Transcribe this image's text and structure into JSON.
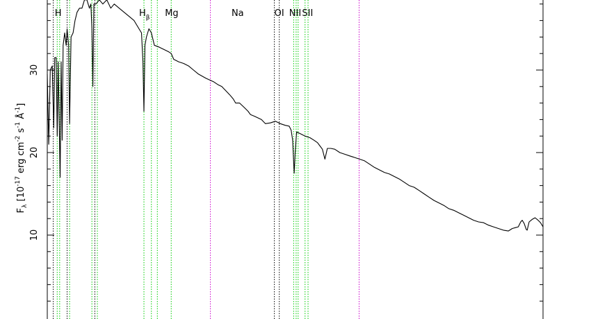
{
  "chart_data": {
    "type": "line",
    "ylabel": "F_λ [10^-17 erg cm^-2 s^-1 Å^-1]",
    "ylim": [
      0,
      38.8
    ],
    "y_ticks": [
      10,
      20,
      30
    ],
    "xlim": [
      0,
      1000
    ],
    "colors": {
      "spectrum": "#000000",
      "green_lines": "#00cc00",
      "black_lines": "#000000",
      "magenta_lines": "#cc00cc"
    },
    "line_labels": [
      {
        "text": "H",
        "x": 22
      },
      {
        "text": "H",
        "sub": "β",
        "x": 196
      },
      {
        "text": "Mg",
        "x": 251
      },
      {
        "text": "Na",
        "x": 384
      },
      {
        "text": "OI",
        "x": 468
      },
      {
        "text": "NII",
        "x": 500
      },
      {
        "text": "SII",
        "x": 525
      }
    ],
    "reference_lines": [
      {
        "x": 12,
        "color": "black"
      },
      {
        "x": 20,
        "color": "green"
      },
      {
        "x": 25,
        "color": "green"
      },
      {
        "x": 40,
        "color": "black"
      },
      {
        "x": 45,
        "color": "green"
      },
      {
        "x": 90,
        "color": "green"
      },
      {
        "x": 96,
        "color": "black"
      },
      {
        "x": 101,
        "color": "green"
      },
      {
        "x": 195,
        "color": "green"
      },
      {
        "x": 210,
        "color": "green"
      },
      {
        "x": 222,
        "color": "green"
      },
      {
        "x": 250,
        "color": "green"
      },
      {
        "x": 329,
        "color": "magenta"
      },
      {
        "x": 458,
        "color": "black"
      },
      {
        "x": 468,
        "color": "black"
      },
      {
        "x": 497,
        "color": "green"
      },
      {
        "x": 502,
        "color": "green"
      },
      {
        "x": 506,
        "color": "green"
      },
      {
        "x": 520,
        "color": "green"
      },
      {
        "x": 526,
        "color": "green"
      },
      {
        "x": 629,
        "color": "magenta"
      }
    ],
    "spectrum": [
      [
        0,
        29.5
      ],
      [
        3,
        21
      ],
      [
        6,
        30
      ],
      [
        10,
        30.5
      ],
      [
        13,
        23
      ],
      [
        15,
        31.5
      ],
      [
        18,
        31.5
      ],
      [
        20,
        22
      ],
      [
        22,
        31
      ],
      [
        26,
        17
      ],
      [
        28,
        31
      ],
      [
        30,
        21.5
      ],
      [
        32,
        33
      ],
      [
        35,
        34.5
      ],
      [
        38,
        33
      ],
      [
        40,
        35
      ],
      [
        43,
        33
      ],
      [
        45,
        23.5
      ],
      [
        48,
        34
      ],
      [
        52,
        34.5
      ],
      [
        56,
        36
      ],
      [
        60,
        37
      ],
      [
        65,
        37.5
      ],
      [
        70,
        37.5
      ],
      [
        75,
        38.5
      ],
      [
        80,
        38.5
      ],
      [
        85,
        37.5
      ],
      [
        88,
        38
      ],
      [
        90,
        35
      ],
      [
        92,
        28
      ],
      [
        94,
        38
      ],
      [
        98,
        38
      ],
      [
        105,
        38.5
      ],
      [
        112,
        38
      ],
      [
        120,
        38.5
      ],
      [
        128,
        37.5
      ],
      [
        135,
        38
      ],
      [
        145,
        37.5
      ],
      [
        155,
        37
      ],
      [
        165,
        36.5
      ],
      [
        175,
        36
      ],
      [
        185,
        35
      ],
      [
        190,
        34.5
      ],
      [
        193,
        31
      ],
      [
        195,
        25
      ],
      [
        197,
        33
      ],
      [
        200,
        34
      ],
      [
        205,
        35
      ],
      [
        210,
        34.5
      ],
      [
        216,
        33
      ],
      [
        225,
        32.8
      ],
      [
        235,
        32.5
      ],
      [
        245,
        32.2
      ],
      [
        250,
        32
      ],
      [
        255,
        31.3
      ],
      [
        265,
        31
      ],
      [
        275,
        30.8
      ],
      [
        285,
        30.5
      ],
      [
        295,
        30
      ],
      [
        305,
        29.5
      ],
      [
        320,
        29
      ],
      [
        335,
        28.6
      ],
      [
        345,
        28.2
      ],
      [
        352,
        28
      ],
      [
        360,
        27.5
      ],
      [
        368,
        27
      ],
      [
        375,
        26.5
      ],
      [
        380,
        26
      ],
      [
        388,
        26
      ],
      [
        395,
        25.6
      ],
      [
        400,
        25.3
      ],
      [
        405,
        25
      ],
      [
        410,
        24.6
      ],
      [
        418,
        24.4
      ],
      [
        425,
        24.2
      ],
      [
        432,
        24
      ],
      [
        440,
        23.5
      ],
      [
        450,
        23.6
      ],
      [
        460,
        23.8
      ],
      [
        470,
        23.5
      ],
      [
        480,
        23.3
      ],
      [
        488,
        23.2
      ],
      [
        492,
        22.7
      ],
      [
        495,
        21.5
      ],
      [
        498,
        17.5
      ],
      [
        500,
        20
      ],
      [
        503,
        22.5
      ],
      [
        510,
        22.3
      ],
      [
        520,
        22
      ],
      [
        530,
        21.8
      ],
      [
        538,
        21.5
      ],
      [
        545,
        21.2
      ],
      [
        550,
        20.8
      ],
      [
        555,
        20.4
      ],
      [
        560,
        19.2
      ],
      [
        565,
        20.5
      ],
      [
        572,
        20.5
      ],
      [
        580,
        20.4
      ],
      [
        590,
        20
      ],
      [
        600,
        19.8
      ],
      [
        610,
        19.6
      ],
      [
        620,
        19.4
      ],
      [
        630,
        19.2
      ],
      [
        640,
        19
      ],
      [
        650,
        18.6
      ],
      [
        660,
        18.2
      ],
      [
        670,
        17.9
      ],
      [
        680,
        17.6
      ],
      [
        690,
        17.4
      ],
      [
        700,
        17.1
      ],
      [
        710,
        16.8
      ],
      [
        720,
        16.4
      ],
      [
        730,
        16
      ],
      [
        740,
        15.8
      ],
      [
        750,
        15.4
      ],
      [
        760,
        15
      ],
      [
        770,
        14.6
      ],
      [
        780,
        14.2
      ],
      [
        790,
        13.9
      ],
      [
        800,
        13.6
      ],
      [
        810,
        13.2
      ],
      [
        820,
        13
      ],
      [
        830,
        12.7
      ],
      [
        840,
        12.4
      ],
      [
        850,
        12.1
      ],
      [
        860,
        11.8
      ],
      [
        870,
        11.6
      ],
      [
        880,
        11.5
      ],
      [
        890,
        11.2
      ],
      [
        900,
        11
      ],
      [
        910,
        10.8
      ],
      [
        920,
        10.6
      ],
      [
        930,
        10.5
      ],
      [
        938,
        10.8
      ],
      [
        944,
        10.9
      ],
      [
        950,
        11
      ],
      [
        955,
        11.6
      ],
      [
        958,
        11.8
      ],
      [
        962,
        11.4
      ],
      [
        966,
        10.7
      ],
      [
        968,
        10.6
      ],
      [
        972,
        11.6
      ],
      [
        978,
        11.9
      ],
      [
        984,
        12.1
      ],
      [
        990,
        11.8
      ],
      [
        995,
        11.5
      ],
      [
        1000,
        11
      ]
    ]
  }
}
